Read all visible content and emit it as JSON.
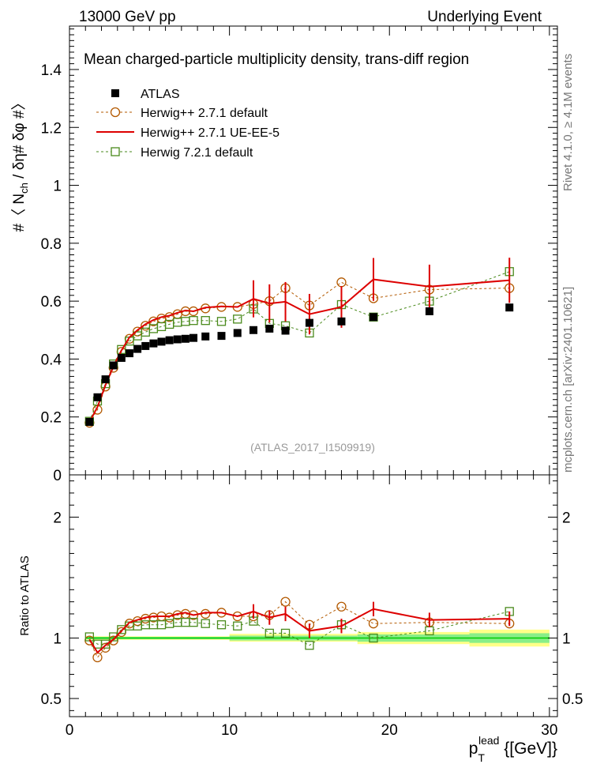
{
  "header": {
    "left": "13000 GeV pp",
    "right": "Underlying Event"
  },
  "side": {
    "rivet": "Rivet 4.1.0, ≥ 4.1M events",
    "mcplots": "mcplots.cern.ch [arXiv:2401.10621]"
  },
  "chart_data": {
    "type": "scatter",
    "title": "Mean charged-particle multiplicity density, trans-diff region",
    "watermark": "(ATLAS_2017_I1509919)",
    "ylabel_main": "#〈 N_ch / δη# δφ #〉",
    "ylabel_ratio": "Ratio to ATLAS",
    "xlabel": "p_T^lead {[GeV]}",
    "xlim": [
      0,
      30.5
    ],
    "ylim_main": [
      0,
      1.55
    ],
    "ylim_ratio": [
      0.35,
      2.35
    ],
    "x_ticks": [
      0,
      10,
      20,
      30
    ],
    "y_ticks_main": [
      0,
      0.2,
      0.4,
      0.6,
      0.8,
      1,
      1.2,
      1.4
    ],
    "y_tick_labels_main": [
      "0",
      "0.2",
      "0.4",
      "0.6",
      "0.8",
      "1",
      "1.2",
      "1.4"
    ],
    "y_ticks_ratio": [
      0.5,
      1,
      2
    ],
    "y_tick_labels_ratio": [
      "0.5",
      "1",
      "2"
    ],
    "x": [
      1.25,
      1.75,
      2.25,
      2.75,
      3.25,
      3.75,
      4.25,
      4.75,
      5.25,
      5.75,
      6.25,
      6.75,
      7.25,
      7.75,
      8.5,
      9.5,
      10.5,
      11.5,
      12.5,
      13.5,
      15,
      17,
      19,
      22.5,
      27.5
    ],
    "series": [
      {
        "name": "ATLAS",
        "style": "data",
        "color": "#000000",
        "values": [
          0.183,
          0.268,
          0.33,
          0.378,
          0.404,
          0.42,
          0.435,
          0.445,
          0.454,
          0.46,
          0.465,
          0.468,
          0.47,
          0.473,
          0.478,
          0.48,
          0.49,
          0.5,
          0.505,
          0.498,
          0.525,
          0.53,
          0.545,
          0.565,
          0.578
        ]
      },
      {
        "name": "Herwig++ 2.7.1 default",
        "style": "circle",
        "color": "#b35900",
        "values": [
          0.18,
          0.225,
          0.305,
          0.37,
          0.425,
          0.47,
          0.495,
          0.515,
          0.53,
          0.54,
          0.545,
          0.555,
          0.565,
          0.565,
          0.575,
          0.58,
          0.58,
          0.59,
          0.6,
          0.645,
          0.585,
          0.665,
          0.61,
          0.64,
          0.645
        ],
        "ratio": [
          0.98,
          0.84,
          0.92,
          0.98,
          1.05,
          1.12,
          1.14,
          1.16,
          1.17,
          1.18,
          1.17,
          1.19,
          1.2,
          1.19,
          1.2,
          1.21,
          1.18,
          1.18,
          1.19,
          1.3,
          1.11,
          1.26,
          1.12,
          1.13,
          1.12
        ]
      },
      {
        "name": "Herwig++ 2.7.1 UE-EE-5",
        "style": "line",
        "color": "#dd0000",
        "values": [
          0.182,
          0.235,
          0.31,
          0.375,
          0.43,
          0.475,
          0.5,
          0.52,
          0.535,
          0.545,
          0.55,
          0.56,
          0.568,
          0.565,
          0.578,
          0.582,
          0.58,
          0.608,
          0.592,
          0.598,
          0.555,
          0.58,
          0.675,
          0.65,
          0.672
        ],
        "ratio": [
          0.99,
          0.88,
          0.94,
          0.99,
          1.06,
          1.13,
          1.15,
          1.17,
          1.18,
          1.18,
          1.18,
          1.2,
          1.21,
          1.19,
          1.21,
          1.21,
          1.18,
          1.22,
          1.17,
          1.2,
          1.06,
          1.1,
          1.24,
          1.15,
          1.16
        ]
      },
      {
        "name": "Herwig 7.2.1 default",
        "style": "square",
        "color": "#4a8a1c",
        "values": [
          0.185,
          0.255,
          0.315,
          0.383,
          0.433,
          0.462,
          0.48,
          0.493,
          0.505,
          0.512,
          0.52,
          0.527,
          0.53,
          0.533,
          0.533,
          0.53,
          0.538,
          0.573,
          0.523,
          0.515,
          0.49,
          0.588,
          0.545,
          0.6,
          0.702
        ],
        "ratio": [
          1.01,
          0.95,
          0.95,
          1.01,
          1.07,
          1.1,
          1.1,
          1.11,
          1.11,
          1.11,
          1.12,
          1.13,
          1.13,
          1.13,
          1.12,
          1.11,
          1.1,
          1.14,
          1.04,
          1.04,
          0.94,
          1.11,
          1.0,
          1.06,
          1.22
        ]
      }
    ]
  }
}
